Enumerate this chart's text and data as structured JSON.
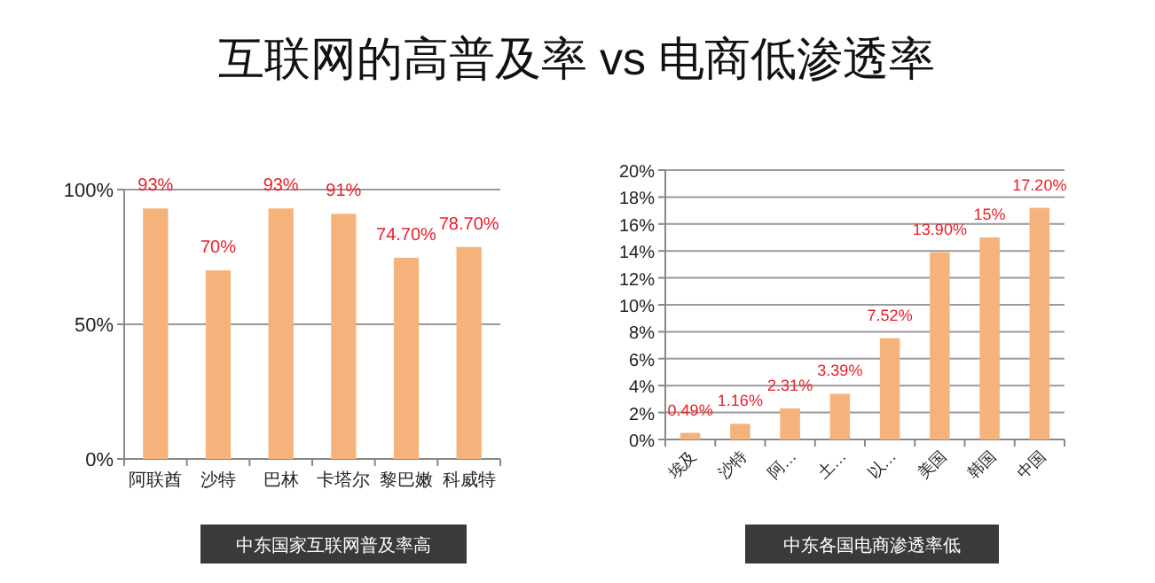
{
  "chart_data": [
    {
      "type": "bar",
      "title": "互联网的高普及率 vs 电商低渗透率",
      "categories": [
        "阿联酋",
        "沙特",
        "巴林",
        "卡塔尔",
        "黎巴嫩",
        "科威特"
      ],
      "values": [
        93,
        70,
        93,
        91,
        74.7,
        78.7
      ],
      "value_labels": [
        "93%",
        "70%",
        "93%",
        "91%",
        "74.70%",
        "78.70%"
      ],
      "color": "#f5b27a",
      "ylim": [
        0,
        100
      ],
      "yticks": [
        {
          "value": 0,
          "label": "0%"
        },
        {
          "value": 50,
          "label": "50%"
        },
        {
          "value": 100,
          "label": "100%"
        }
      ],
      "grid": "y",
      "annotations": [
        "中东国家互联网普及率高"
      ]
    },
    {
      "type": "bar",
      "categories": [
        "埃及",
        "沙特",
        "阿…",
        "土…",
        "以…",
        "美国",
        "韩国",
        "中国"
      ],
      "values": [
        0.49,
        1.16,
        2.31,
        3.39,
        7.52,
        13.9,
        15,
        17.2
      ],
      "value_labels": [
        "0.49%",
        "1.16%",
        "2.31%",
        "3.39%",
        "7.52%",
        "13.90%",
        "15%",
        "17.20%"
      ],
      "color": "#f5b27a",
      "ylim": [
        0,
        20
      ],
      "yticks": [
        {
          "value": 0,
          "label": "0%"
        },
        {
          "value": 2,
          "label": "2%"
        },
        {
          "value": 4,
          "label": "4%"
        },
        {
          "value": 6,
          "label": "6%"
        },
        {
          "value": 8,
          "label": "8%"
        },
        {
          "value": 10,
          "label": "10%"
        },
        {
          "value": 12,
          "label": "12%"
        },
        {
          "value": 14,
          "label": "14%"
        },
        {
          "value": 16,
          "label": "16%"
        },
        {
          "value": 18,
          "label": "18%"
        },
        {
          "value": 20,
          "label": "20%"
        }
      ],
      "grid": "y",
      "annotations": [
        "中东各国电商渗透率低"
      ]
    }
  ]
}
